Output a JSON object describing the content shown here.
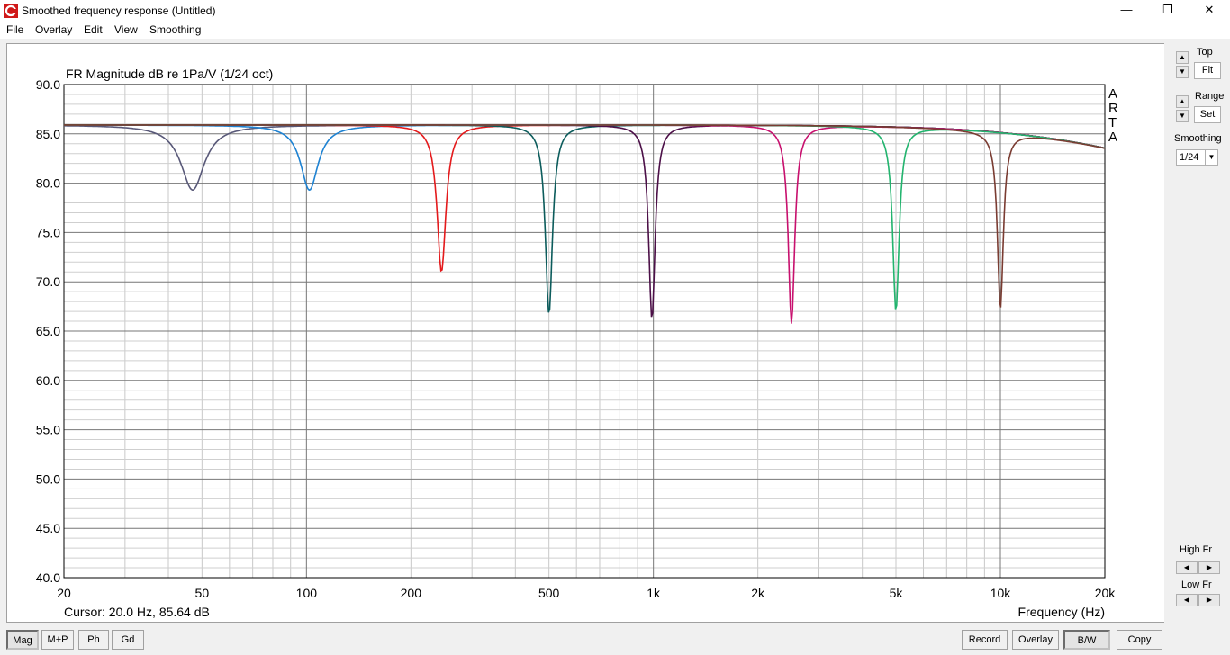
{
  "window": {
    "title": "Smoothed frequency response (Untitled)",
    "minimize_glyph": "—",
    "restore_glyph": "❐",
    "close_glyph": "✕"
  },
  "menu": [
    "File",
    "Overlay",
    "Edit",
    "View",
    "Smoothing"
  ],
  "sidebar": {
    "top_label": "Top",
    "fit_label": "Fit",
    "range_label": "Range",
    "set_label": "Set",
    "smoothing_label": "Smoothing",
    "smoothing_value": "1/24",
    "high_fr_label": "High Fr",
    "low_fr_label": "Low Fr"
  },
  "bottom_left_buttons": [
    "Mag",
    "M+P",
    "Ph",
    "Gd"
  ],
  "bottom_right_buttons": [
    "Record",
    "Overlay",
    "B/W",
    "Copy"
  ],
  "chart_data": {
    "type": "line",
    "title": "FR Magnitude dB re 1Pa/V (1/24 oct)",
    "xlabel": "Frequency (Hz)",
    "ylabel": "",
    "xscale": "log",
    "xlim": [
      20,
      20000
    ],
    "ylim": [
      40,
      90
    ],
    "grid": true,
    "watermark": "ARTA",
    "cursor_readout": "Cursor: 20.0 Hz, 85.64 dB",
    "x_tick_labels": [
      {
        "v": 20,
        "t": "20"
      },
      {
        "v": 50,
        "t": "50"
      },
      {
        "v": 100,
        "t": "100"
      },
      {
        "v": 200,
        "t": "200"
      },
      {
        "v": 500,
        "t": "500"
      },
      {
        "v": 1000,
        "t": "1k"
      },
      {
        "v": 2000,
        "t": "2k"
      },
      {
        "v": 5000,
        "t": "5k"
      },
      {
        "v": 10000,
        "t": "10k"
      },
      {
        "v": 20000,
        "t": "20k"
      }
    ],
    "y_tick_labels": [
      "90.0",
      "85.0",
      "80.0",
      "75.0",
      "70.0",
      "65.0",
      "60.0",
      "55.0",
      "50.0",
      "45.0",
      "40.0"
    ],
    "baseline_db": 85.9,
    "series": [
      {
        "color": "#585878",
        "notch_hz": 47,
        "notch_min_db": 79.3,
        "q": 3
      },
      {
        "color": "#1e82d2",
        "notch_hz": 102,
        "notch_min_db": 79.3,
        "q": 4
      },
      {
        "color": "#e41a1c",
        "notch_hz": 245,
        "notch_min_db": 71.0,
        "q": 8
      },
      {
        "color": "#0c5c5c",
        "notch_hz": 500,
        "notch_min_db": 66.7,
        "q": 10
      },
      {
        "color": "#4c1048",
        "notch_hz": 990,
        "notch_min_db": 66.2,
        "q": 11
      },
      {
        "color": "#c8106e",
        "notch_hz": 2500,
        "notch_min_db": 65.8,
        "q": 11
      },
      {
        "color": "#22b46e",
        "notch_hz": 5000,
        "notch_min_db": 67.2,
        "q": 11
      },
      {
        "color": "#7a3c32",
        "notch_hz": 10000,
        "notch_min_db": 68.0,
        "q": 12
      }
    ]
  }
}
